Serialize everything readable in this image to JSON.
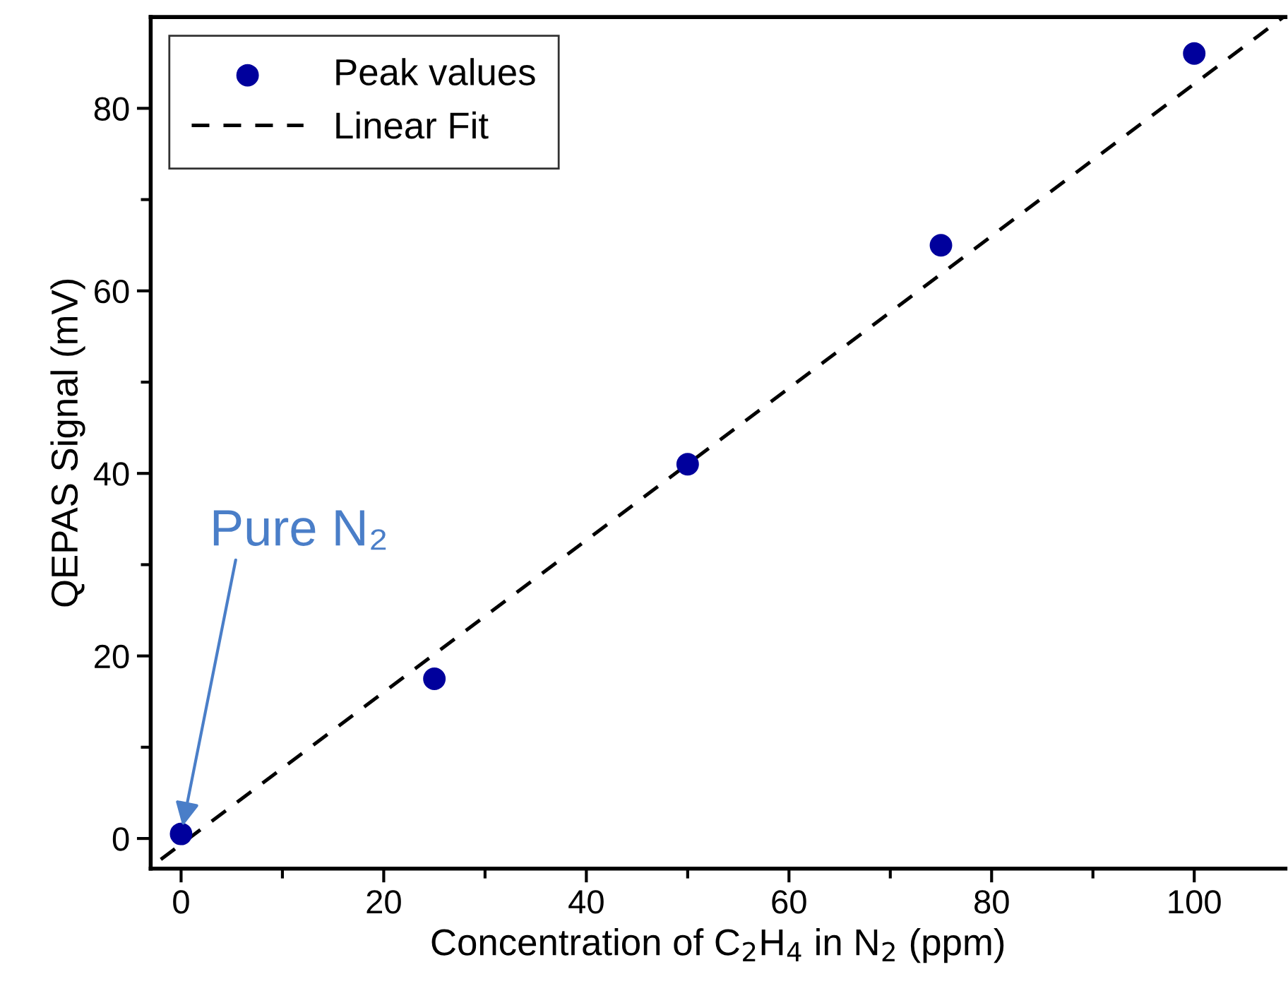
{
  "chart_data": {
    "type": "scatter",
    "xlabel": "Concentration of C$_{2}$H$_{4}$ in N$_{2}$ (ppm)",
    "ylabel": "QEPAS Signal (mV)",
    "series": [
      {
        "name": "Peak values",
        "type": "scatter",
        "color": "#00009c",
        "marker": "circle",
        "x": [
          0,
          25,
          50,
          75,
          100
        ],
        "values": [
          0.5,
          17.5,
          41,
          65,
          86
        ]
      },
      {
        "name": "Linear Fit",
        "type": "line",
        "color": "#000000",
        "marker": "none",
        "line_style": "dashed",
        "x": [
          -2,
          108.8
        ],
        "values": [
          -2.3,
          90
        ]
      }
    ],
    "xlim": [
      -3,
      109
    ],
    "ylim": [
      -3.3,
      90
    ],
    "xticks": [
      0,
      {
        "value": 10,
        "label": null
      },
      20,
      {
        "value": 30,
        "label": null
      },
      40,
      {
        "value": 50,
        "label": null
      },
      60,
      {
        "value": 70,
        "label": null
      },
      80,
      {
        "value": 90,
        "label": null
      },
      100
    ],
    "yticks": [
      0,
      {
        "value": 10,
        "label": null
      },
      20,
      {
        "value": 30,
        "label": null
      },
      40,
      {
        "value": 50,
        "label": null
      },
      60,
      {
        "value": 70,
        "label": null
      },
      80
    ],
    "annotations": [
      {
        "text": "Pure N₂",
        "x": 0,
        "y": 0.5
      }
    ],
    "legend": "top left",
    "grid": false
  }
}
